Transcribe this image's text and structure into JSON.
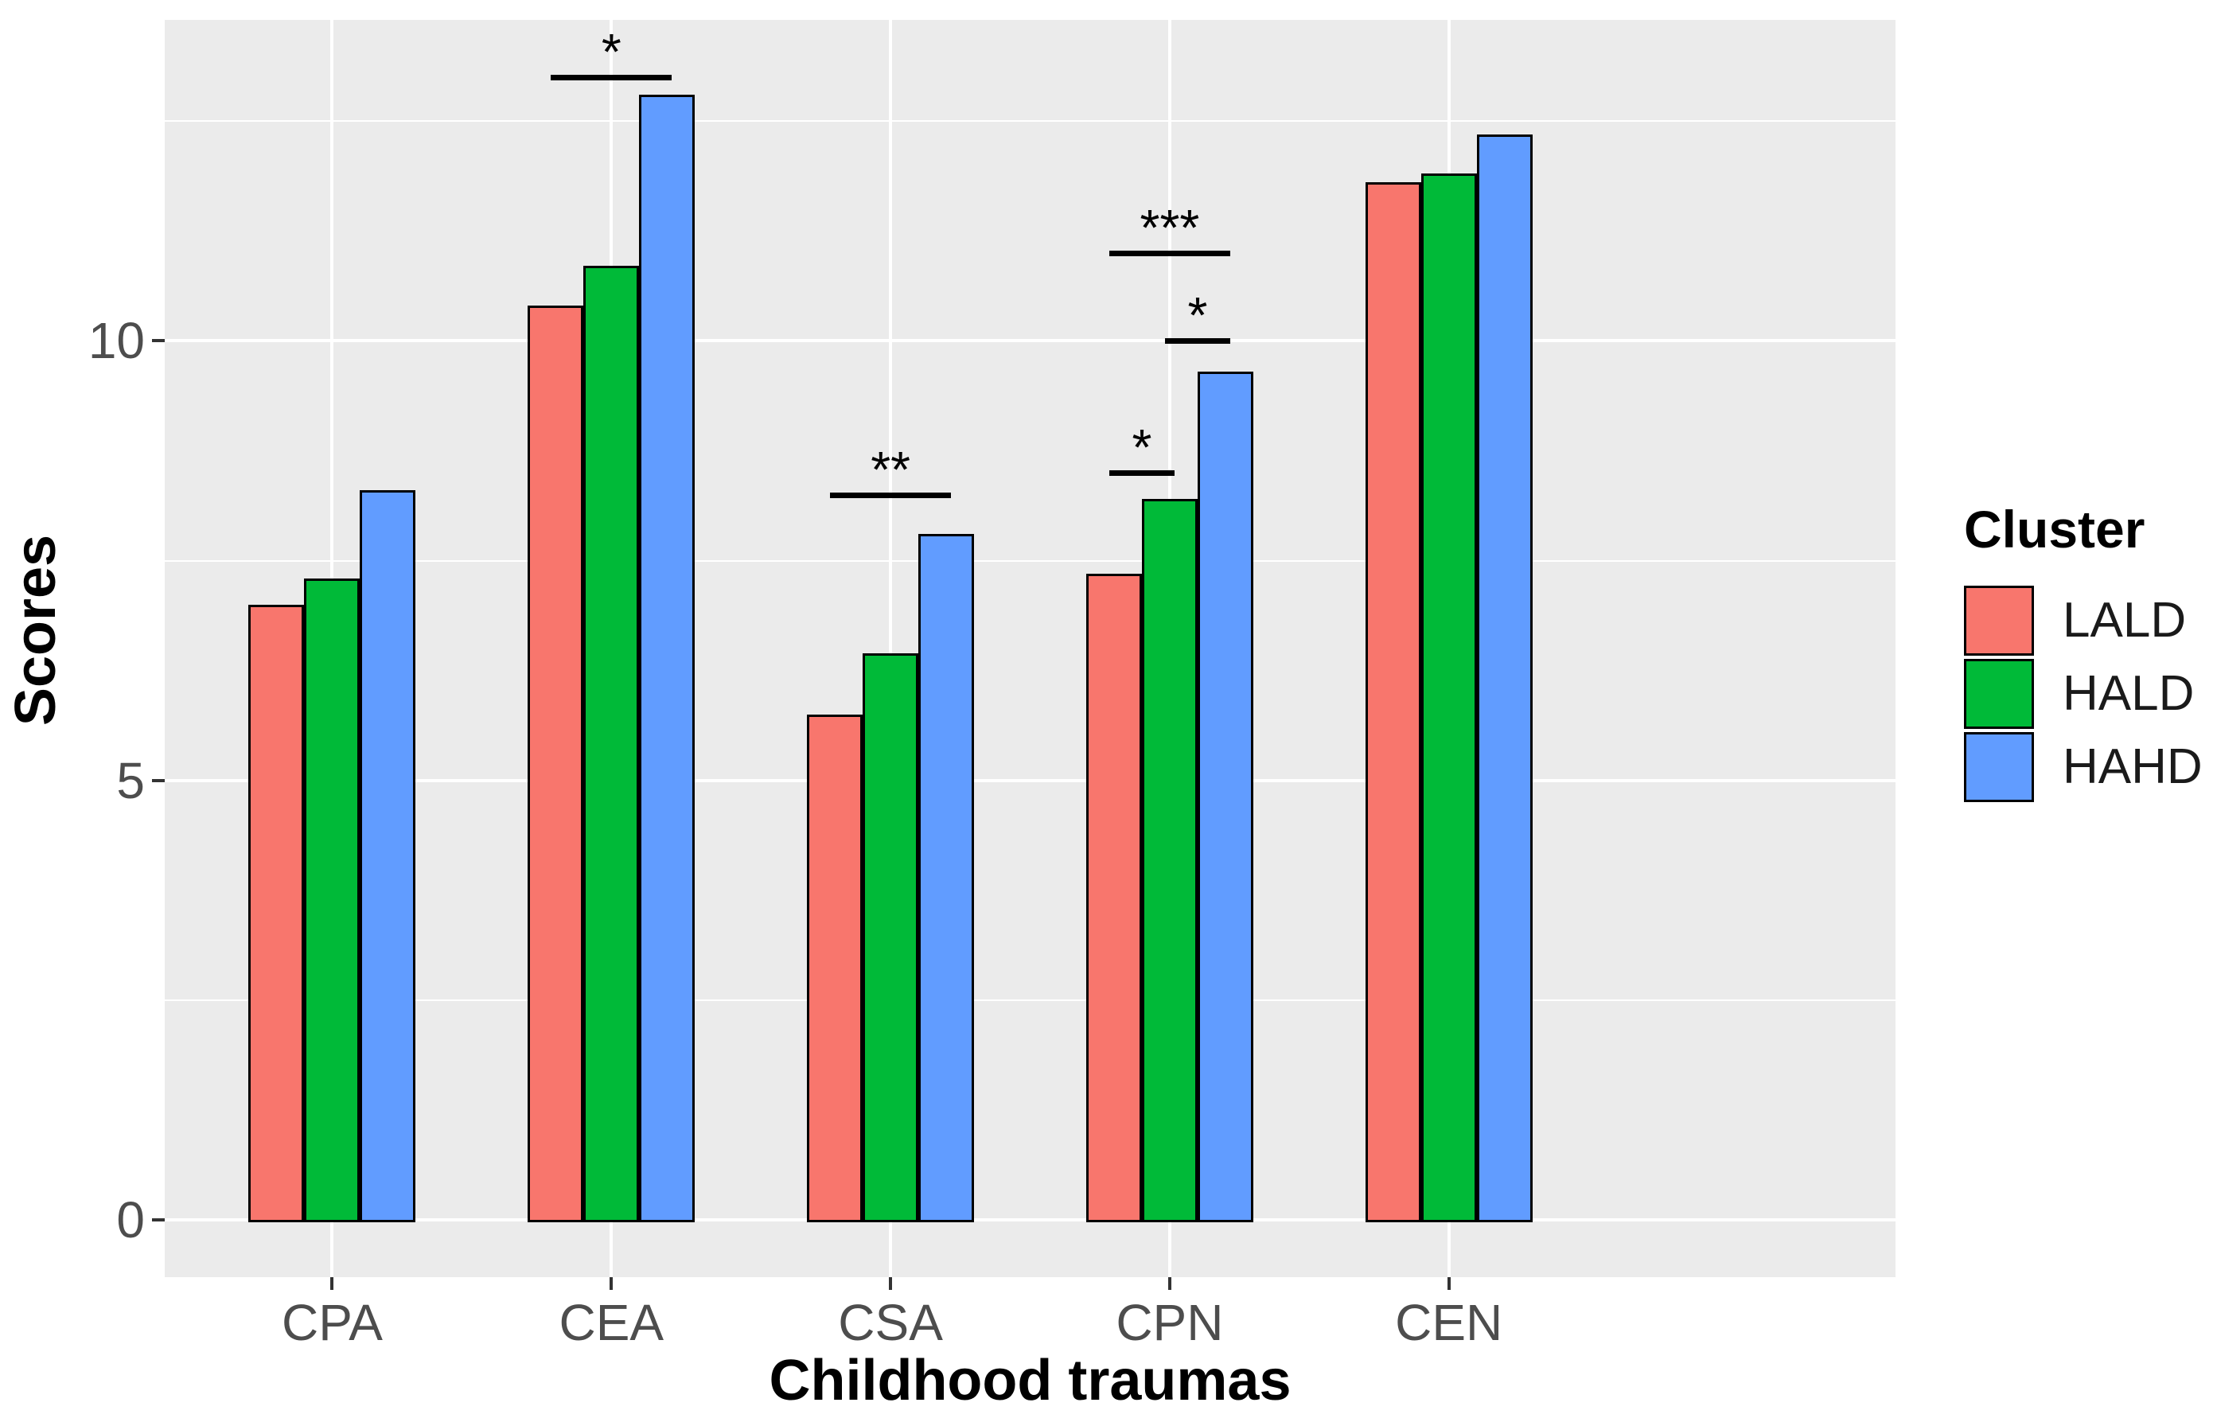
{
  "figure": {
    "xlabel": "Childhood traumas",
    "ylabel": "Scores"
  },
  "chart_data": {
    "type": "bar",
    "title": "",
    "xlabel": "Childhood traumas",
    "ylabel": "Scores",
    "categories": [
      "CPA",
      "CEA",
      "CSA",
      "CPN",
      "CEN"
    ],
    "series": [
      {
        "name": "LALD",
        "color": "#F8766D",
        "values": [
          7.0,
          10.4,
          5.75,
          7.35,
          11.8
        ]
      },
      {
        "name": "HALD",
        "color": "#00BA38",
        "values": [
          7.3,
          10.85,
          6.45,
          8.2,
          11.9
        ]
      },
      {
        "name": "HAHD",
        "color": "#619CFF",
        "values": [
          8.3,
          12.8,
          7.8,
          9.65,
          12.35
        ]
      }
    ],
    "ylim": [
      -0.65,
      13.65
    ],
    "y_major_ticks": [
      0,
      5,
      10
    ],
    "y_minor_ticks": [
      2.5,
      7.5,
      12.5
    ],
    "grid": true,
    "panel_bg": "#EBEBEB",
    "legend": {
      "title": "Cluster",
      "position": "right",
      "entries": [
        "LALD",
        "HALD",
        "HAHD"
      ]
    },
    "significance_annotations": [
      {
        "category": "CEA",
        "label": "*",
        "level": 13.0,
        "from": "LALD",
        "to": "HAHD"
      },
      {
        "category": "CSA",
        "label": "**",
        "level": 8.25,
        "from": "LALD",
        "to": "HAHD"
      },
      {
        "category": "CPN",
        "label": "***",
        "level": 11.0,
        "from": "LALD",
        "to": "HAHD"
      },
      {
        "category": "CPN",
        "label": "*",
        "level": 10.0,
        "from": "HALD",
        "to": "HAHD"
      },
      {
        "category": "CPN",
        "label": "*",
        "level": 8.5,
        "from": "LALD",
        "to": "HALD"
      }
    ]
  }
}
